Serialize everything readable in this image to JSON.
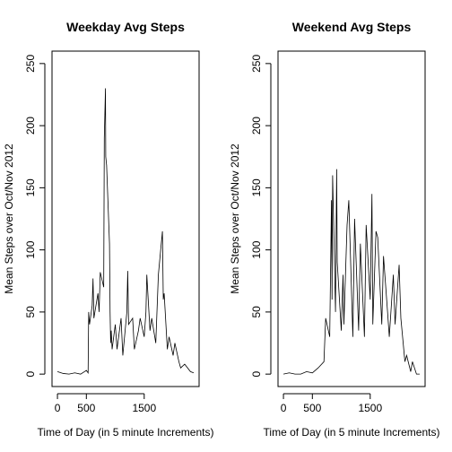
{
  "chart_data": [
    {
      "type": "line",
      "title": "Weekday Avg Steps",
      "xlabel": "Time of Day (in 5 minute Increments)",
      "ylabel": "Mean Steps over Oct/Nov 2012",
      "color": "#000000",
      "x": [
        0,
        100,
        200,
        300,
        400,
        500,
        530,
        540,
        555,
        600,
        615,
        630,
        700,
        720,
        740,
        800,
        810,
        830,
        835,
        850,
        900,
        910,
        920,
        930,
        945,
        1000,
        1030,
        1100,
        1130,
        1200,
        1215,
        1230,
        1300,
        1330,
        1400,
        1430,
        1500,
        1530,
        1545,
        1600,
        1630,
        1700,
        1745,
        1815,
        1830,
        1845,
        1900,
        1930,
        2000,
        2030,
        2100,
        2130,
        2200,
        2300,
        2355
      ],
      "values": [
        2,
        0.5,
        0,
        1,
        0,
        3,
        1,
        50,
        40,
        55,
        77,
        45,
        65,
        50,
        82,
        70,
        190,
        230,
        175,
        168,
        105,
        50,
        25,
        35,
        20,
        40,
        20,
        45,
        15,
        50,
        83,
        40,
        45,
        20,
        35,
        45,
        30,
        50,
        80,
        35,
        45,
        25,
        80,
        115,
        60,
        65,
        20,
        30,
        15,
        25,
        10,
        5,
        8,
        2,
        1
      ],
      "xlim": [
        -94,
        2449
      ],
      "ylim": [
        -10,
        260
      ],
      "xticks": [
        0,
        500,
        1500
      ],
      "yticks": [
        0,
        50,
        100,
        150,
        200,
        250
      ]
    },
    {
      "type": "line",
      "title": "Weekend Avg Steps",
      "xlabel": "Time of Day (in 5 minute Increments)",
      "ylabel": "Mean Steps over Oct/Nov 2012",
      "color": "#000000",
      "x": [
        0,
        100,
        200,
        300,
        400,
        500,
        600,
        700,
        730,
        800,
        830,
        840,
        850,
        900,
        920,
        930,
        1000,
        1030,
        1045,
        1100,
        1130,
        1200,
        1230,
        1300,
        1330,
        1400,
        1430,
        1500,
        1530,
        1545,
        1600,
        1630,
        1700,
        1730,
        1800,
        1830,
        1900,
        1930,
        2000,
        2030,
        2100,
        2130,
        2200,
        2230,
        2300,
        2355
      ],
      "values": [
        0,
        1,
        0,
        0,
        2,
        1,
        5,
        10,
        45,
        30,
        140,
        60,
        160,
        50,
        165,
        90,
        35,
        80,
        40,
        120,
        140,
        30,
        125,
        35,
        105,
        30,
        120,
        60,
        145,
        40,
        115,
        110,
        40,
        95,
        50,
        30,
        80,
        40,
        88,
        45,
        10,
        15,
        2,
        10,
        0,
        0
      ],
      "xlim": [
        -94,
        2449
      ],
      "ylim": [
        -10,
        260
      ],
      "xticks": [
        0,
        500,
        1500
      ],
      "yticks": [
        0,
        50,
        100,
        150,
        200,
        250
      ]
    }
  ]
}
